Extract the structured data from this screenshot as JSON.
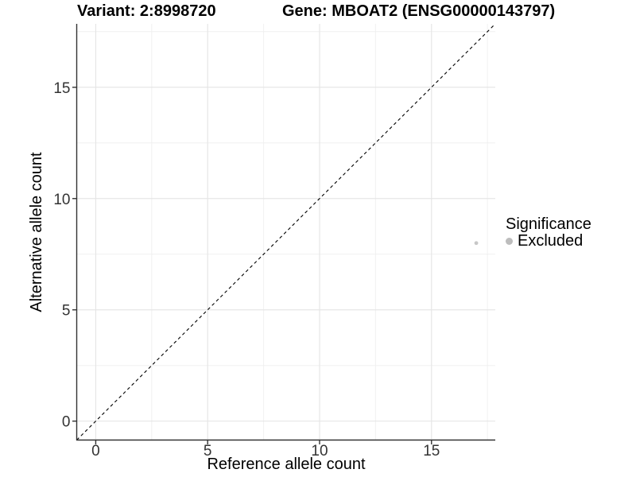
{
  "header": {
    "variant_title": "Variant: 2:8998720",
    "gene_title": "Gene: MBOAT2 (ENSG00000143797)"
  },
  "chart_data": {
    "type": "scatter",
    "title": "Variant: 2:8998720   Gene: MBOAT2 (ENSG00000143797)",
    "xlabel": "Reference allele count",
    "ylabel": "Alternative allele count",
    "xlim": [
      -0.85,
      17.85
    ],
    "ylim": [
      -0.85,
      17.85
    ],
    "xticks": [
      0,
      5,
      10,
      15
    ],
    "yticks": [
      0,
      5,
      10,
      15
    ],
    "xminor": [
      2.5,
      7.5,
      12.5,
      17.5
    ],
    "yminor": [
      2.5,
      7.5,
      12.5,
      17.5
    ],
    "grid": "major+minor",
    "identity_line": {
      "equation": "y = x",
      "style": "dashed",
      "color": "#000000"
    },
    "series": [
      {
        "name": "Excluded",
        "color": "#c7c7c7",
        "point_radius": 2.4,
        "points": [
          {
            "x": 17,
            "y": 8
          }
        ]
      }
    ],
    "legend": {
      "title": "Significance",
      "position": "right",
      "items": [
        {
          "label": "Excluded",
          "color": "#bdbdbd"
        }
      ]
    },
    "style": {
      "major_grid_color": "#e6e6e6",
      "minor_grid_color": "#f0f0f0",
      "axis_line_color": "#333333",
      "tick_color": "#333333",
      "panel_background": "#ffffff"
    }
  }
}
